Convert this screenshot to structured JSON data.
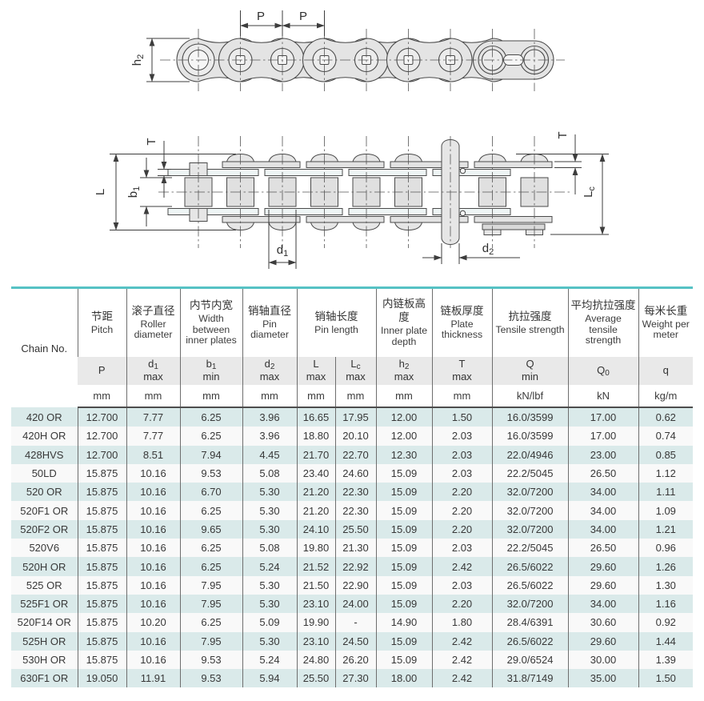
{
  "colors": {
    "accent_teal": "#56c2c4",
    "row_alt_blue": "#daeaea",
    "symbol_row_gray": "#e9e9e9",
    "grid_border": "#6e6e6e",
    "chain_fill": "#e4e4e4",
    "drawing_line": "#4a4a4a"
  },
  "diagram": {
    "labels": {
      "pitch_left": "P",
      "pitch_right": "P",
      "h2": {
        "base": "h",
        "sub": "2"
      },
      "t_left": "T",
      "length_l": "L",
      "b1": {
        "base": "b",
        "sub": "1"
      },
      "d1": {
        "base": "d",
        "sub": "1"
      },
      "d2": {
        "base": "d",
        "sub": "2"
      },
      "t_right": "T",
      "lc": {
        "base": "L",
        "sub": "c"
      }
    }
  },
  "table": {
    "chain_no": "Chain No.",
    "columns": [
      {
        "zh": "节距",
        "en": "Pitch",
        "sym": {
          "base": "P",
          "sub": "",
          "qual": ""
        },
        "unit": "mm"
      },
      {
        "zh": "滚子直径",
        "en": "Roller diameter",
        "sym": {
          "base": "d",
          "sub": "1",
          "qual": "max"
        },
        "unit": "mm"
      },
      {
        "zh": "内节内宽",
        "en": "Width between inner plates",
        "sym": {
          "base": "b",
          "sub": "1",
          "qual": "min"
        },
        "unit": "mm"
      },
      {
        "zh": "销轴直径",
        "en": "Pin diameter",
        "sym": {
          "base": "d",
          "sub": "2",
          "qual": "max"
        },
        "unit": "mm"
      },
      {
        "zh": "销轴长度",
        "en": "Pin length",
        "sub": [
          {
            "sym": {
              "base": "L",
              "sub": "",
              "qual": "max"
            },
            "unit": "mm"
          },
          {
            "sym": {
              "base": "L",
              "sub": "c",
              "qual": "max"
            },
            "unit": "mm"
          }
        ]
      },
      {
        "zh": "内链板高度",
        "en": "Inner plate depth",
        "sym": {
          "base": "h",
          "sub": "2",
          "qual": "max"
        },
        "unit": "mm"
      },
      {
        "zh": "链板厚度",
        "en": "Plate thickness",
        "sym": {
          "base": "T",
          "sub": "",
          "qual": "max"
        },
        "unit": "mm"
      },
      {
        "zh": "抗拉强度",
        "en": "Tensile strength",
        "sym": {
          "base": "Q",
          "sub": "",
          "qual": "min"
        },
        "unit": "kN/lbf"
      },
      {
        "zh": "平均抗拉强度",
        "en": "Average tensile strength",
        "sym": {
          "base": "Q",
          "sub": "0",
          "qual": ""
        },
        "unit": "kN"
      },
      {
        "zh": "每米长重",
        "en": "Weight per meter",
        "sym": {
          "base": "q",
          "sub": "",
          "qual": ""
        },
        "unit": "kg/m"
      }
    ],
    "rows": [
      [
        "420 OR",
        "12.700",
        "7.77",
        "6.25",
        "3.96",
        "16.65",
        "17.95",
        "12.00",
        "1.50",
        "16.0/3599",
        "17.00",
        "0.62"
      ],
      [
        "420H OR",
        "12.700",
        "7.77",
        "6.25",
        "3.96",
        "18.80",
        "20.10",
        "12.00",
        "2.03",
        "16.0/3599",
        "17.00",
        "0.74"
      ],
      [
        "428HVS",
        "12.700",
        "8.51",
        "7.94",
        "4.45",
        "21.70",
        "22.70",
        "12.30",
        "2.03",
        "22.0/4946",
        "23.00",
        "0.85"
      ],
      [
        "50LD",
        "15.875",
        "10.16",
        "9.53",
        "5.08",
        "23.40",
        "24.60",
        "15.09",
        "2.03",
        "22.2/5045",
        "26.50",
        "1.12"
      ],
      [
        "520 OR",
        "15.875",
        "10.16",
        "6.70",
        "5.30",
        "21.20",
        "22.30",
        "15.09",
        "2.20",
        "32.0/7200",
        "34.00",
        "1.11"
      ],
      [
        "520F1 OR",
        "15.875",
        "10.16",
        "6.25",
        "5.30",
        "21.20",
        "22.30",
        "15.09",
        "2.20",
        "32.0/7200",
        "34.00",
        "1.09"
      ],
      [
        "520F2 OR",
        "15.875",
        "10.16",
        "9.65",
        "5.30",
        "24.10",
        "25.50",
        "15.09",
        "2.20",
        "32.0/7200",
        "34.00",
        "1.21"
      ],
      [
        "520V6",
        "15.875",
        "10.16",
        "6.25",
        "5.08",
        "19.80",
        "21.30",
        "15.09",
        "2.03",
        "22.2/5045",
        "26.50",
        "0.96"
      ],
      [
        "520H OR",
        "15.875",
        "10.16",
        "6.25",
        "5.24",
        "21.52",
        "22.92",
        "15.09",
        "2.42",
        "26.5/6022",
        "29.60",
        "1.26"
      ],
      [
        "525 OR",
        "15.875",
        "10.16",
        "7.95",
        "5.30",
        "21.50",
        "22.90",
        "15.09",
        "2.03",
        "26.5/6022",
        "29.60",
        "1.30"
      ],
      [
        "525F1 OR",
        "15.875",
        "10.16",
        "7.95",
        "5.30",
        "23.10",
        "24.00",
        "15.09",
        "2.20",
        "32.0/7200",
        "34.00",
        "1.16"
      ],
      [
        "520F14 OR",
        "15.875",
        "10.20",
        "6.25",
        "5.09",
        "19.90",
        "-",
        "14.90",
        "1.80",
        "28.4/6391",
        "30.60",
        "0.92"
      ],
      [
        "525H OR",
        "15.875",
        "10.16",
        "7.95",
        "5.30",
        "23.10",
        "24.50",
        "15.09",
        "2.42",
        "26.5/6022",
        "29.60",
        "1.44"
      ],
      [
        "530H OR",
        "15.875",
        "10.16",
        "9.53",
        "5.24",
        "24.80",
        "26.20",
        "15.09",
        "2.42",
        "29.0/6524",
        "30.00",
        "1.39"
      ],
      [
        "630F1 OR",
        "19.050",
        "11.91",
        "9.53",
        "5.94",
        "25.50",
        "27.30",
        "18.00",
        "2.42",
        "31.8/7149",
        "35.00",
        "1.50"
      ]
    ]
  }
}
